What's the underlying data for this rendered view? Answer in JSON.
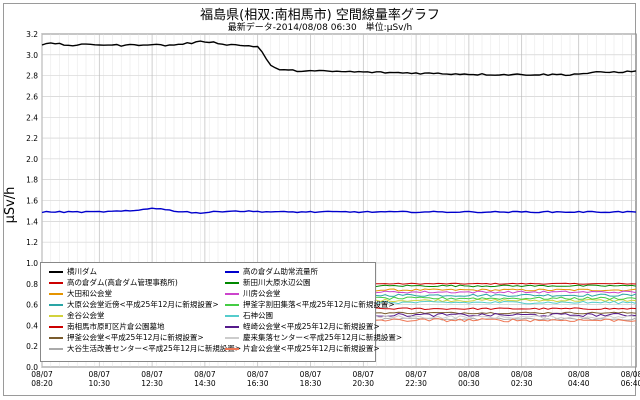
{
  "title": "福島県(相双:南相馬市) 空間線量率グラフ",
  "subtitle": "最新データ-2014/08/08 06:30　単位:μSv/h",
  "chart_data": {
    "type": "line",
    "ylabel": "μSv/h",
    "ylim": [
      0,
      3.2
    ],
    "yticks": [
      "0.0",
      "0.2",
      "0.4",
      "0.6",
      "0.8",
      "1.0",
      "1.2",
      "1.4",
      "1.6",
      "1.8",
      "2.0",
      "2.2",
      "2.4",
      "2.6",
      "2.8",
      "3.0",
      "3.2"
    ],
    "xtick_labels": [
      [
        "08/07",
        "08:20"
      ],
      [
        "08/07",
        "10:30"
      ],
      [
        "08/07",
        "12:30"
      ],
      [
        "08/07",
        "14:30"
      ],
      [
        "08/07",
        "16:30"
      ],
      [
        "08/07",
        "18:30"
      ],
      [
        "08/07",
        "20:30"
      ],
      [
        "08/07",
        "22:30"
      ],
      [
        "08/08",
        "00:30"
      ],
      [
        "08/08",
        "02:30"
      ],
      [
        "08/08",
        "04:40"
      ],
      [
        "08/08",
        "06:40"
      ]
    ],
    "x_hours": [
      0,
      2.17,
      4.17,
      6.17,
      8.17,
      10.17,
      12.17,
      14.17,
      16.17,
      18.17,
      20.33,
      22.33
    ],
    "x_max_hours": 22.5,
    "grid": true,
    "legend_position": "bottom-left",
    "series": [
      {
        "name": "横川ダム",
        "color": "#000000",
        "base": 3.08,
        "noise": 0.008,
        "points": [
          [
            0,
            3.1
          ],
          [
            0.5,
            3.11
          ],
          [
            1,
            3.09
          ],
          [
            2,
            3.1
          ],
          [
            3,
            3.09
          ],
          [
            4,
            3.1
          ],
          [
            4.8,
            3.09
          ],
          [
            5.5,
            3.11
          ],
          [
            6.2,
            3.13
          ],
          [
            7,
            3.1
          ],
          [
            8.2,
            3.08
          ],
          [
            8.5,
            2.96
          ],
          [
            8.7,
            2.88
          ],
          [
            9.2,
            2.85
          ],
          [
            11,
            2.84
          ],
          [
            13,
            2.83
          ],
          [
            15,
            2.82
          ],
          [
            17,
            2.81
          ],
          [
            20,
            2.81
          ],
          [
            21,
            2.83
          ],
          [
            22.5,
            2.84
          ]
        ]
      },
      {
        "name": "高の倉ダム(高倉ダム管理事務所)",
        "color": "#cc0000",
        "base": 0.8,
        "noise": 0.005
      },
      {
        "name": "大田和公会堂",
        "color": "#e59400",
        "base": 0.74,
        "noise": 0.01
      },
      {
        "name": "大原公会堂近傍<平成25年12月に新規設置>",
        "color": "#2aa5a5",
        "base": 0.69,
        "noise": 0.012
      },
      {
        "name": "金谷公会堂",
        "color": "#d2d23c",
        "base": 0.64,
        "noise": 0.012
      },
      {
        "name": "南相馬市原町区片倉公園墓地",
        "color": "#cc0000",
        "base": 0.56,
        "noise": 0.008
      },
      {
        "name": "押釜公会堂<平成25年12月に新規設置>",
        "color": "#7a5c2e",
        "base": 0.52,
        "noise": 0.008
      },
      {
        "name": "大谷生活改善センター<平成25年12月に新規設置>",
        "color": "#aaaaaa",
        "base": 0.46,
        "noise": 0.01
      },
      {
        "name": "高の倉ダム助常流量所",
        "color": "#0000cc",
        "base": 1.49,
        "noise": 0.006,
        "points": [
          [
            0,
            1.49
          ],
          [
            2,
            1.49
          ],
          [
            3.5,
            1.5
          ],
          [
            4.2,
            1.53
          ],
          [
            5,
            1.5
          ],
          [
            6,
            1.48
          ],
          [
            7,
            1.5
          ],
          [
            9,
            1.49
          ],
          [
            12,
            1.49
          ],
          [
            16,
            1.49
          ],
          [
            20,
            1.49
          ],
          [
            22.5,
            1.49
          ]
        ]
      },
      {
        "name": "新田川大原水辺公園",
        "color": "#008800",
        "base": 0.78,
        "noise": 0.008
      },
      {
        "name": "川房公会堂",
        "color": "#cc44cc",
        "base": 0.72,
        "noise": 0.01
      },
      {
        "name": "押釜字割田集落<平成25年12月に新規設置>",
        "color": "#44cc44",
        "base": 0.66,
        "noise": 0.012
      },
      {
        "name": "石神公園",
        "color": "#55cccc",
        "base": 0.62,
        "noise": 0.012
      },
      {
        "name": "蛭崎公会堂<平成25年12月に新規設置>",
        "color": "#551a8b",
        "base": 0.5,
        "noise": 0.015
      },
      {
        "name": "慶来集落センター<平成25年12月に新規設置>",
        "color": "#cccccc",
        "base": 0.48,
        "noise": 0.015
      },
      {
        "name": "片倉公会堂<平成25年12月に新規設置>",
        "color": "#ee7755",
        "base": 0.45,
        "noise": 0.015
      }
    ]
  }
}
